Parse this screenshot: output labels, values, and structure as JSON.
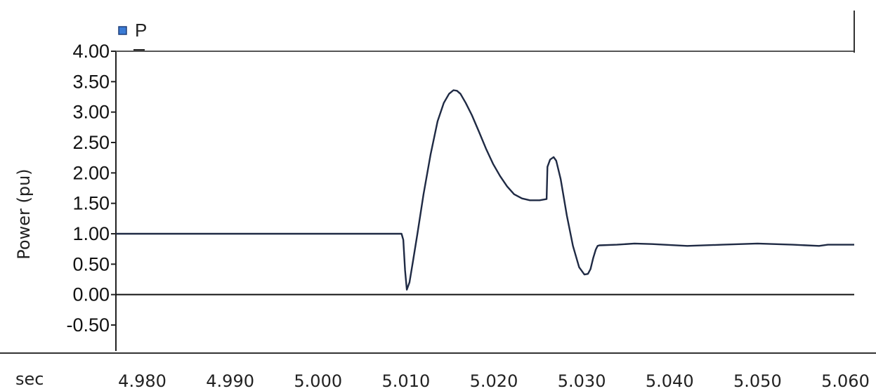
{
  "chart_data": {
    "type": "line",
    "ylabel": "Power (pu)",
    "x_unit": "sec",
    "xlim": [
      4.977,
      5.061
    ],
    "ylim": [
      -0.65,
      4.0
    ],
    "x_ticks": [
      "4.980",
      "4.990",
      "5.000",
      "5.010",
      "5.020",
      "5.030",
      "5.040",
      "5.050",
      "5.060"
    ],
    "y_ticks": [
      "4.00",
      "3.50",
      "3.00",
      "2.50",
      "2.00",
      "1.50",
      "1.00",
      "0.50",
      "0.00",
      "-0.50"
    ],
    "legend": {
      "position": "top-left"
    },
    "series": [
      {
        "name": "P",
        "color": "#1f2a44",
        "x": [
          4.977,
          5.0095,
          5.0097,
          5.0099,
          5.0101,
          5.0104,
          5.0108,
          5.0113,
          5.012,
          5.0128,
          5.0136,
          5.0143,
          5.0149,
          5.0154,
          5.0158,
          5.0162,
          5.0168,
          5.0175,
          5.0183,
          5.0191,
          5.0199,
          5.0207,
          5.0215,
          5.0223,
          5.0232,
          5.0241,
          5.0252,
          5.026,
          5.0261,
          5.0264,
          5.0268,
          5.0271,
          5.0276,
          5.0283,
          5.029,
          5.0297,
          5.0303,
          5.0307,
          5.031,
          5.0313,
          5.0316,
          5.0318,
          5.032,
          5.034,
          5.036,
          5.038,
          5.042,
          5.046,
          5.05,
          5.054,
          5.057,
          5.058,
          5.061
        ],
        "y": [
          1.0,
          1.0,
          0.9,
          0.4,
          0.08,
          0.2,
          0.55,
          1.0,
          1.65,
          2.3,
          2.85,
          3.15,
          3.3,
          3.36,
          3.35,
          3.3,
          3.15,
          2.95,
          2.68,
          2.4,
          2.15,
          1.95,
          1.78,
          1.65,
          1.58,
          1.55,
          1.55,
          1.57,
          2.1,
          2.22,
          2.26,
          2.2,
          1.9,
          1.3,
          0.8,
          0.45,
          0.33,
          0.34,
          0.42,
          0.6,
          0.74,
          0.8,
          0.81,
          0.82,
          0.84,
          0.83,
          0.8,
          0.82,
          0.84,
          0.82,
          0.8,
          0.82,
          0.82
        ]
      }
    ]
  }
}
